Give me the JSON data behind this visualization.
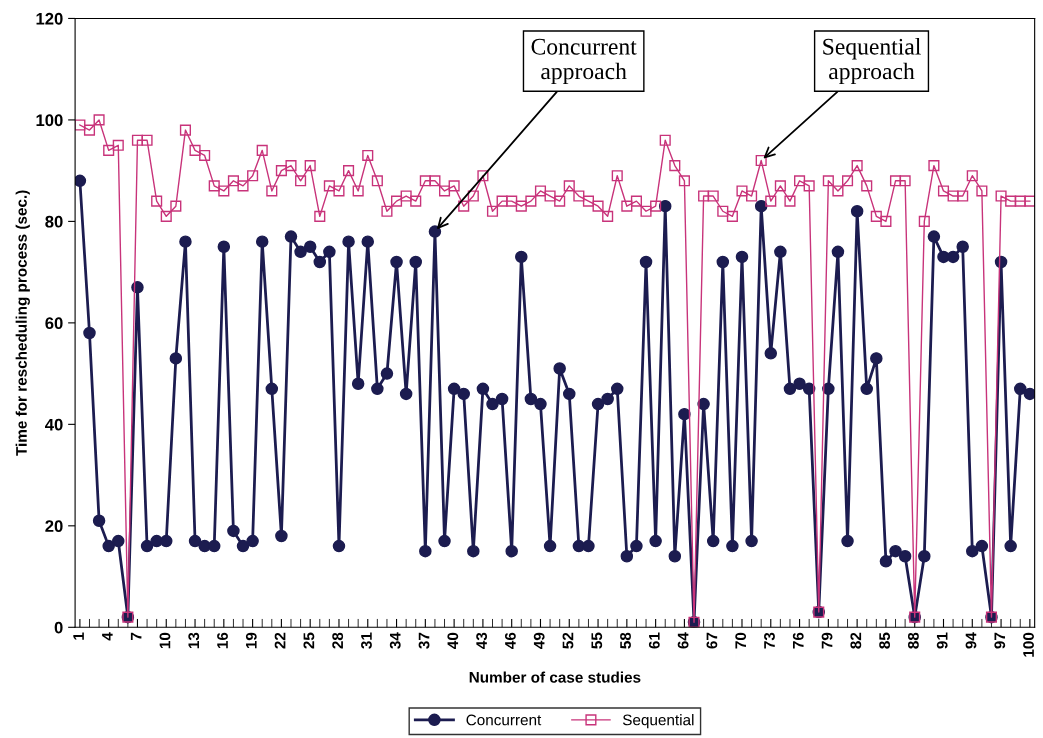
{
  "chart_data": {
    "type": "line",
    "xlabel": "Number of case studies",
    "ylabel": "Time for rescheduling process (sec.)",
    "x": [
      1,
      2,
      3,
      4,
      5,
      6,
      7,
      8,
      9,
      10,
      11,
      12,
      13,
      14,
      15,
      16,
      17,
      18,
      19,
      20,
      21,
      22,
      23,
      24,
      25,
      26,
      27,
      28,
      29,
      30,
      31,
      32,
      33,
      34,
      35,
      36,
      37,
      38,
      39,
      40,
      41,
      42,
      43,
      44,
      45,
      46,
      47,
      48,
      49,
      50,
      51,
      52,
      53,
      54,
      55,
      56,
      57,
      58,
      59,
      60,
      61,
      62,
      63,
      64,
      65,
      66,
      67,
      68,
      69,
      70,
      71,
      72,
      73,
      74,
      75,
      76,
      77,
      78,
      79,
      80,
      81,
      82,
      83,
      84,
      85,
      86,
      87,
      88,
      89,
      90,
      91,
      92,
      93,
      94,
      95,
      96,
      97,
      98,
      99,
      100
    ],
    "series": [
      {
        "name": "Concurrent",
        "color": "#1c1c50",
        "marker": "circle",
        "values": [
          88,
          58,
          21,
          16,
          17,
          2,
          67,
          16,
          17,
          17,
          53,
          76,
          17,
          16,
          16,
          75,
          19,
          16,
          17,
          76,
          47,
          18,
          77,
          74,
          75,
          72,
          74,
          16,
          76,
          48,
          76,
          47,
          50,
          72,
          46,
          72,
          15,
          78,
          17,
          47,
          46,
          15,
          47,
          44,
          45,
          15,
          73,
          45,
          44,
          16,
          51,
          46,
          16,
          16,
          44,
          45,
          47,
          14,
          16,
          72,
          17,
          83,
          14,
          42,
          1,
          44,
          17,
          72,
          16,
          73,
          17,
          83,
          54,
          74,
          47,
          48,
          47,
          3,
          47,
          74,
          17,
          82,
          47,
          53,
          13,
          15,
          14,
          2,
          14,
          77,
          73,
          73,
          75,
          15,
          16,
          2,
          72,
          16,
          47,
          46
        ]
      },
      {
        "name": "Sequential",
        "color": "#c8337a",
        "marker": "square",
        "values": [
          99,
          98,
          100,
          94,
          95,
          2,
          96,
          96,
          84,
          81,
          83,
          98,
          94,
          93,
          87,
          86,
          88,
          87,
          89,
          94,
          86,
          90,
          91,
          88,
          91,
          81,
          87,
          86,
          90,
          86,
          93,
          88,
          82,
          84,
          85,
          84,
          88,
          88,
          86,
          87,
          83,
          85,
          89,
          82,
          84,
          84,
          83,
          84,
          86,
          85,
          84,
          87,
          85,
          84,
          83,
          81,
          89,
          83,
          84,
          82,
          83,
          96,
          91,
          88,
          1,
          85,
          85,
          82,
          81,
          86,
          85,
          92,
          84,
          87,
          84,
          88,
          87,
          3,
          88,
          86,
          88,
          91,
          87,
          81,
          80,
          88,
          88,
          2,
          80,
          91,
          86,
          85,
          85,
          89,
          86,
          2,
          85,
          84,
          84,
          84
        ]
      }
    ],
    "xlim": [
      0.5,
      100.5
    ],
    "xticks": [
      1,
      4,
      7,
      10,
      13,
      16,
      19,
      22,
      25,
      28,
      31,
      34,
      37,
      40,
      43,
      46,
      49,
      52,
      55,
      58,
      61,
      64,
      67,
      70,
      73,
      76,
      79,
      82,
      85,
      88,
      91,
      94,
      97,
      100
    ],
    "ylim": [
      0,
      120
    ],
    "yticks": [
      0,
      20,
      40,
      60,
      80,
      100,
      120
    ],
    "grid": false,
    "legend": "bottom",
    "annotations": [
      {
        "text": "Concurrent\napproach",
        "x": 38,
        "y": 78
      },
      {
        "text": "Sequential\napproach",
        "x": 72,
        "y": 92
      }
    ]
  }
}
